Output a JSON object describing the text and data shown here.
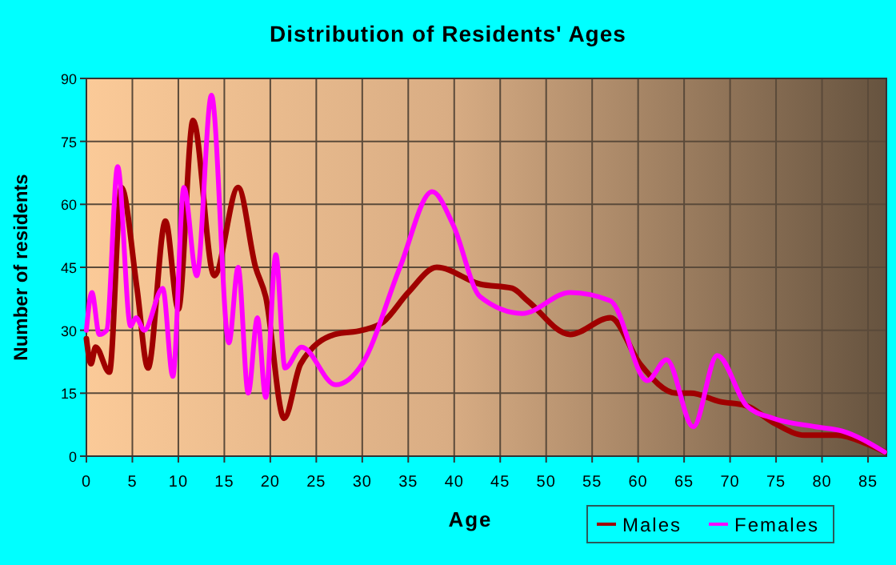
{
  "chart_data": {
    "type": "line",
    "title": "Distribution of Residents' Ages",
    "xlabel": "Age",
    "ylabel": "Number of residents",
    "xlim": [
      0,
      87
    ],
    "xticks": [
      0,
      5,
      10,
      15,
      20,
      25,
      30,
      35,
      40,
      45,
      50,
      55,
      60,
      65,
      70,
      75,
      80,
      85
    ],
    "ylim": [
      0,
      90
    ],
    "yticks": [
      0,
      15,
      30,
      45,
      60,
      75,
      90
    ],
    "grid": true,
    "legend": "bottom right",
    "marker": "none",
    "line_style": "solid",
    "series": [
      {
        "name": "Males",
        "color": "#a00000",
        "x": [
          0,
          0.5,
          1,
          2.5,
          3.8,
          5.5,
          6.7,
          8.6,
          10,
          11.6,
          13.9,
          16.5,
          18.4,
          19.5,
          21.5,
          23.3,
          27,
          30,
          32.3,
          35,
          38.1,
          42.8,
          46.3,
          48,
          52.6,
          57,
          60.2,
          64.2,
          65.7,
          68.9,
          71.8,
          74.7,
          78.1,
          81.6,
          84.8,
          86.8
        ],
        "values": [
          28,
          22,
          26,
          20,
          64,
          40,
          21,
          56,
          35,
          80,
          43,
          64,
          45,
          38,
          9,
          22,
          29,
          30,
          32,
          39,
          45,
          41,
          40,
          37,
          29,
          33,
          22,
          15,
          15,
          13,
          12,
          8,
          5,
          5,
          3,
          1
        ]
      },
      {
        "name": "Females",
        "color": "#ff00ff",
        "x": [
          0,
          0.6,
          1.4,
          2.2,
          3.4,
          4.8,
          5.4,
          6.3,
          8.3,
          9.4,
          10.6,
          12,
          13.6,
          15.5,
          16.5,
          17.6,
          18.6,
          19.5,
          20.6,
          21.6,
          23.4,
          27.1,
          30,
          34.1,
          37.6,
          39.9,
          42.8,
          47.4,
          52.6,
          57,
          61,
          63.1,
          66,
          68.6,
          71.8,
          74.7,
          79.3,
          82.2,
          86.8
        ],
        "values": [
          30,
          39,
          29,
          30,
          69,
          31,
          33,
          30,
          40,
          19,
          64,
          43,
          86,
          27,
          45,
          15,
          33,
          14,
          48,
          21,
          26,
          17,
          22,
          45,
          63,
          55,
          38,
          34,
          39,
          37,
          18,
          23,
          7,
          24,
          12,
          9,
          7,
          6,
          1
        ]
      }
    ]
  }
}
